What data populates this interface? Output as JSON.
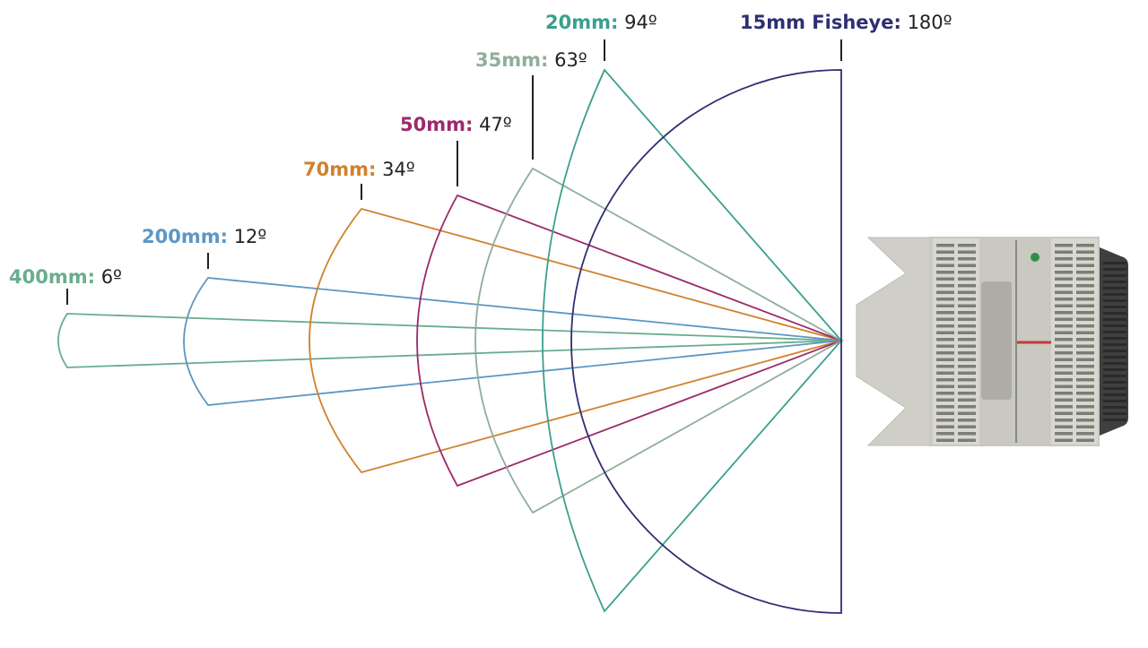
{
  "lenses": [
    {
      "focal": "400mm:",
      "angle": "6º",
      "color": "#6aad8c"
    },
    {
      "focal": "200mm:",
      "angle": "12º",
      "color": "#5d97c4"
    },
    {
      "focal": "70mm:",
      "angle": "34º",
      "color": "#d0822e"
    },
    {
      "focal": "50mm:",
      "angle": "47º",
      "color": "#9b2a6c"
    },
    {
      "focal": "35mm:",
      "angle": "63º",
      "color": "#8fae9c"
    },
    {
      "focal": "20mm:",
      "angle": "94º",
      "color": "#3aa08e"
    },
    {
      "focal": "15mm Fisheye:",
      "angle": "180º",
      "color": "#2e2f73"
    }
  ]
}
